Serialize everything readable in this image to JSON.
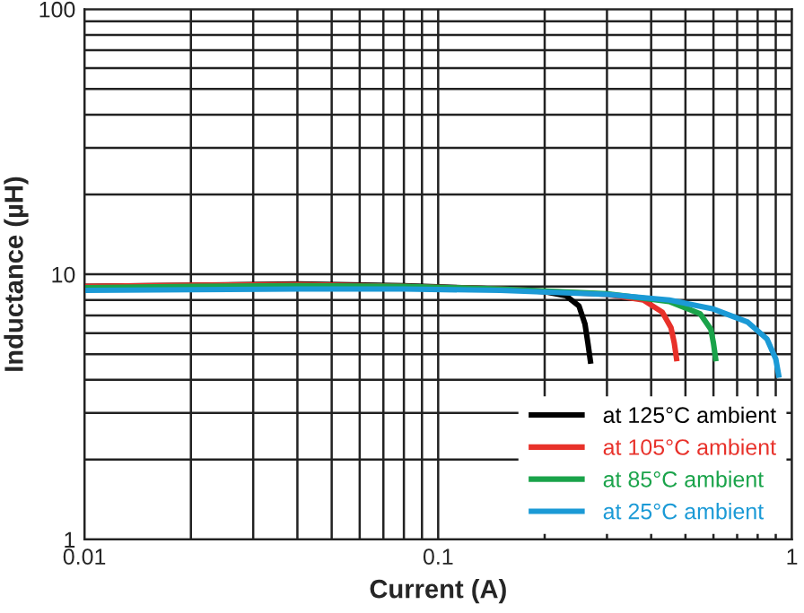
{
  "chart_data": {
    "type": "line",
    "xlabel": "Current (A)",
    "ylabel": "Inductance (µH)",
    "log": "xy",
    "xlim": [
      0.01,
      1
    ],
    "ylim": [
      1,
      100
    ],
    "xticks": [
      0.01,
      0.1,
      1
    ],
    "yticks": [
      1,
      10,
      100
    ],
    "grid": true,
    "legend": "bottom right",
    "series": [
      {
        "name": "at 125°C ambient",
        "color": "#000000",
        "x": [
          0.01,
          0.02,
          0.04,
          0.08,
          0.15,
          0.2,
          0.23,
          0.25,
          0.26,
          0.265,
          0.27
        ],
        "values": [
          9.0,
          9.1,
          9.2,
          9.05,
          8.8,
          8.6,
          8.3,
          7.6,
          6.5,
          5.5,
          4.6
        ]
      },
      {
        "name": "at 105°C ambient",
        "color": "#e8312a",
        "x": [
          0.01,
          0.02,
          0.04,
          0.08,
          0.15,
          0.3,
          0.38,
          0.43,
          0.455,
          0.465,
          0.473
        ],
        "values": [
          9.0,
          9.1,
          9.15,
          9.0,
          8.8,
          8.4,
          8.0,
          7.2,
          6.3,
          5.5,
          4.7
        ]
      },
      {
        "name": "at 85°C ambient",
        "color": "#1aa34a",
        "x": [
          0.01,
          0.02,
          0.04,
          0.08,
          0.15,
          0.3,
          0.45,
          0.55,
          0.59,
          0.6,
          0.61
        ],
        "values": [
          8.9,
          9.0,
          9.05,
          9.0,
          8.8,
          8.45,
          7.9,
          7.1,
          6.2,
          5.5,
          4.7
        ]
      },
      {
        "name": "at 25°C ambient",
        "color": "#1b9ad6",
        "x": [
          0.01,
          0.02,
          0.04,
          0.08,
          0.15,
          0.3,
          0.45,
          0.6,
          0.75,
          0.85,
          0.9,
          0.92
        ],
        "values": [
          8.7,
          8.75,
          8.8,
          8.8,
          8.7,
          8.4,
          8.0,
          7.4,
          6.6,
          5.7,
          4.8,
          4.07
        ]
      }
    ]
  }
}
